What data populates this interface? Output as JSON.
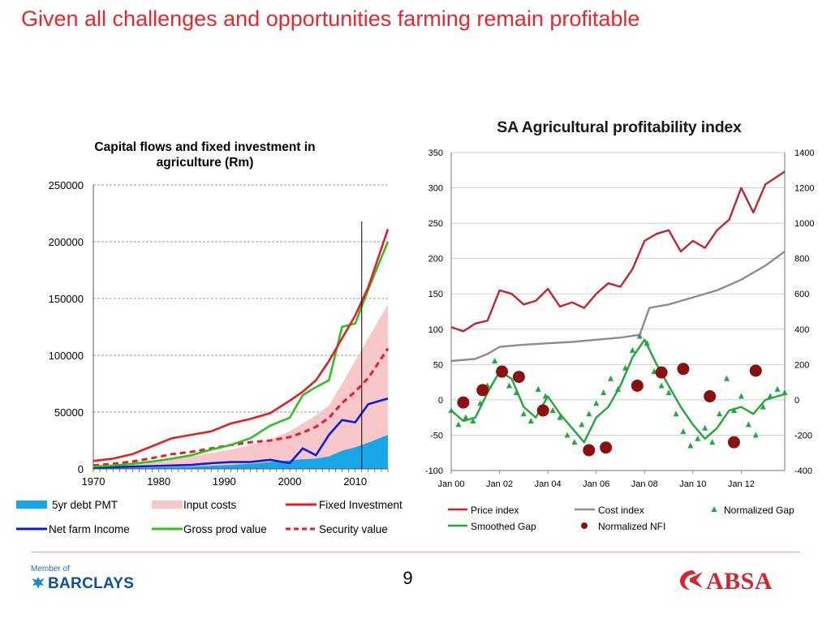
{
  "slide": {
    "title": "Given all challenges and opportunities farming remain profitable",
    "page_number": "9",
    "footer_left": {
      "member_text": "Member of",
      "brand": "BARCLAYS",
      "icon": "eagle-icon"
    },
    "footer_right": {
      "brand": "ABSA",
      "icon": "absa-logo-icon"
    }
  },
  "colors": {
    "title": "#e8262c",
    "debt_pmt": "#17a6e8",
    "input_costs": "#f7c7c9",
    "fixed_investment": "#e31e25",
    "net_farm_income": "#0a1ed6",
    "gross_prod_value": "#2ec21e",
    "security_value": "#e31e25",
    "price_index": "#c0272d",
    "cost_index": "#8c8c8c",
    "normalized_gap": "#22a83a",
    "smoothed_gap": "#22a83a",
    "normalized_nfi": "#8b1010"
  },
  "chart_data": [
    {
      "type": "area",
      "title": "Capital flows and fixed investment in agriculture (Rm)",
      "xlim": [
        1970,
        2015
      ],
      "ylim": [
        0,
        250000
      ],
      "x_ticks": [
        "1970",
        "1980",
        "1990",
        "2000",
        "2010"
      ],
      "y_ticks": [
        "0",
        "50000",
        "100000",
        "150000",
        "200000",
        "250000"
      ],
      "grid": "horizontal dashed",
      "vertical_marker_x": 2011,
      "legend_position": "bottom",
      "x": [
        1970,
        1973,
        1976,
        1979,
        1982,
        1985,
        1988,
        1991,
        1994,
        1997,
        2000,
        2002,
        2004,
        2006,
        2008,
        2010,
        2012,
        2015
      ],
      "series": [
        {
          "name": "5yr debt PMT",
          "style": "area",
          "values": [
            500,
            700,
            900,
            1200,
            1600,
            2000,
            2800,
            3500,
            4500,
            6000,
            7500,
            8500,
            9000,
            11000,
            16000,
            19000,
            23000,
            30000
          ]
        },
        {
          "name": "Input costs",
          "style": "area",
          "values": [
            2000,
            3000,
            4500,
            6500,
            9000,
            11000,
            14000,
            17000,
            21000,
            26000,
            33000,
            40000,
            47000,
            56000,
            75000,
            95000,
            115000,
            145000
          ]
        },
        {
          "name": "Fixed Investment",
          "style": "line",
          "values": [
            7000,
            9000,
            13000,
            20000,
            27000,
            30000,
            33000,
            40000,
            44000,
            49000,
            60000,
            68000,
            78000,
            95000,
            115000,
            135000,
            160000,
            211000
          ]
        },
        {
          "name": "Net farm Income",
          "style": "line",
          "values": [
            1000,
            1500,
            2000,
            2500,
            3000,
            3500,
            5000,
            6000,
            6000,
            8000,
            5000,
            18000,
            12000,
            30000,
            43000,
            41000,
            57000,
            62000
          ]
        },
        {
          "name": "Gross prod value",
          "style": "line",
          "values": [
            2000,
            3000,
            4500,
            6500,
            9000,
            12000,
            17000,
            21000,
            27000,
            38000,
            45000,
            65000,
            72000,
            78000,
            125000,
            128000,
            158000,
            200000
          ]
        },
        {
          "name": "Security value",
          "style": "dashed",
          "values": [
            3000,
            4500,
            6500,
            9500,
            13000,
            15000,
            18000,
            21000,
            23500,
            25000,
            28000,
            32000,
            37000,
            45000,
            58000,
            68000,
            80000,
            106000
          ]
        }
      ]
    },
    {
      "type": "line",
      "title": "SA Agricultural profitability index",
      "x_ticks": [
        "Jan 00",
        "Jan 02",
        "Jan 04",
        "Jan 06",
        "Jan 08",
        "Jan 10",
        "Jan 12"
      ],
      "xlim": [
        2000.0,
        2013.8
      ],
      "ylim_left": [
        -100,
        350
      ],
      "ylim_right": [
        -400,
        1400
      ],
      "y_ticks_left": [
        "350",
        "300",
        "250",
        "200",
        "150",
        "100",
        "50",
        "0",
        "-50",
        "-100"
      ],
      "y_ticks_right": [
        "1400",
        "1200",
        "1000",
        "800",
        "600",
        "400",
        "200",
        "0",
        "-200",
        "-400"
      ],
      "grid": "horizontal",
      "legend_position": "bottom",
      "series": [
        {
          "name": "Price index",
          "axis": "left",
          "x": [
            2000.0,
            2000.5,
            2001.0,
            2001.5,
            2002.0,
            2002.5,
            2003.0,
            2003.5,
            2004.0,
            2004.5,
            2005.0,
            2005.5,
            2006.0,
            2006.5,
            2007.0,
            2007.5,
            2008.0,
            2008.5,
            2009.0,
            2009.5,
            2010.0,
            2010.5,
            2011.0,
            2011.5,
            2012.0,
            2012.5,
            2013.0,
            2013.8
          ],
          "values": [
            103,
            97,
            108,
            112,
            155,
            150,
            135,
            140,
            157,
            132,
            138,
            130,
            150,
            165,
            160,
            185,
            225,
            235,
            240,
            210,
            225,
            215,
            240,
            255,
            300,
            265,
            305,
            323
          ]
        },
        {
          "name": "Cost index",
          "axis": "left",
          "x": [
            2000.0,
            2001.0,
            2001.5,
            2002.0,
            2003.0,
            2004.0,
            2005.0,
            2006.0,
            2007.0,
            2007.8,
            2008.2,
            2009.0,
            2010.0,
            2011.0,
            2012.0,
            2013.0,
            2013.8
          ],
          "values": [
            55,
            58,
            65,
            75,
            78,
            80,
            82,
            85,
            88,
            92,
            130,
            135,
            145,
            155,
            170,
            190,
            210
          ]
        },
        {
          "name": "Smoothed Gap",
          "axis": "left",
          "x": [
            2000.0,
            2000.5,
            2001.0,
            2001.5,
            2002.0,
            2002.5,
            2003.0,
            2003.5,
            2004.0,
            2004.5,
            2005.0,
            2005.5,
            2006.0,
            2006.5,
            2007.0,
            2007.5,
            2008.0,
            2008.5,
            2009.0,
            2009.5,
            2010.0,
            2010.5,
            2011.0,
            2011.5,
            2012.0,
            2012.5,
            2013.0,
            2013.8
          ],
          "values": [
            -15,
            -30,
            -25,
            10,
            40,
            30,
            -10,
            -25,
            5,
            -20,
            -40,
            -60,
            -25,
            -10,
            20,
            60,
            85,
            50,
            20,
            -10,
            -35,
            -55,
            -40,
            -15,
            -10,
            -20,
            0,
            8
          ]
        },
        {
          "name": "Normalized Gap",
          "axis": "left",
          "style": "markers",
          "x": [
            2000.0,
            2000.3,
            2000.6,
            2000.9,
            2001.2,
            2001.5,
            2001.8,
            2002.1,
            2002.4,
            2002.7,
            2003.0,
            2003.3,
            2003.6,
            2003.9,
            2004.2,
            2004.5,
            2004.8,
            2005.1,
            2005.4,
            2005.7,
            2006.0,
            2006.3,
            2006.6,
            2006.9,
            2007.2,
            2007.5,
            2007.8,
            2008.1,
            2008.4,
            2008.7,
            2009.0,
            2009.3,
            2009.6,
            2009.9,
            2010.2,
            2010.5,
            2010.8,
            2011.1,
            2011.4,
            2011.7,
            2012.0,
            2012.3,
            2012.6,
            2012.9,
            2013.2,
            2013.5,
            2013.8
          ],
          "values": [
            -15,
            -35,
            -25,
            -30,
            -5,
            20,
            55,
            35,
            20,
            10,
            -20,
            -30,
            15,
            5,
            -15,
            -25,
            -50,
            -60,
            -35,
            -20,
            -5,
            10,
            30,
            15,
            45,
            70,
            90,
            80,
            40,
            20,
            10,
            -20,
            -45,
            -65,
            -55,
            -40,
            -60,
            -20,
            30,
            -15,
            5,
            -35,
            -50,
            -10,
            5,
            15,
            10
          ]
        },
        {
          "name": "Normalized NFI",
          "axis": "right",
          "style": "markers",
          "x": [
            2000.5,
            2001.3,
            2002.1,
            2002.8,
            2003.8,
            2005.7,
            2006.4,
            2007.7,
            2008.7,
            2009.6,
            2010.7,
            2011.7,
            2012.6
          ],
          "values": [
            -15,
            55,
            160,
            130,
            -60,
            -285,
            -270,
            80,
            155,
            175,
            20,
            -240,
            165
          ]
        }
      ]
    }
  ],
  "legend_left": [
    {
      "label": "5yr debt PMT",
      "symbol": "area"
    },
    {
      "label": "Input costs",
      "symbol": "area"
    },
    {
      "label": "Fixed Investment",
      "symbol": "line"
    },
    {
      "label": "Net farm Income",
      "symbol": "line"
    },
    {
      "label": "Gross prod value",
      "symbol": "line"
    },
    {
      "label": "Security value",
      "symbol": "dashed"
    }
  ],
  "legend_right": [
    {
      "label": "Price index",
      "symbol": "line"
    },
    {
      "label": "Cost index",
      "symbol": "line"
    },
    {
      "label": "Normalized Gap",
      "symbol": "triangle"
    },
    {
      "label": "Smoothed Gap",
      "symbol": "line"
    },
    {
      "label": "Normalized NFI",
      "symbol": "circle"
    }
  ]
}
